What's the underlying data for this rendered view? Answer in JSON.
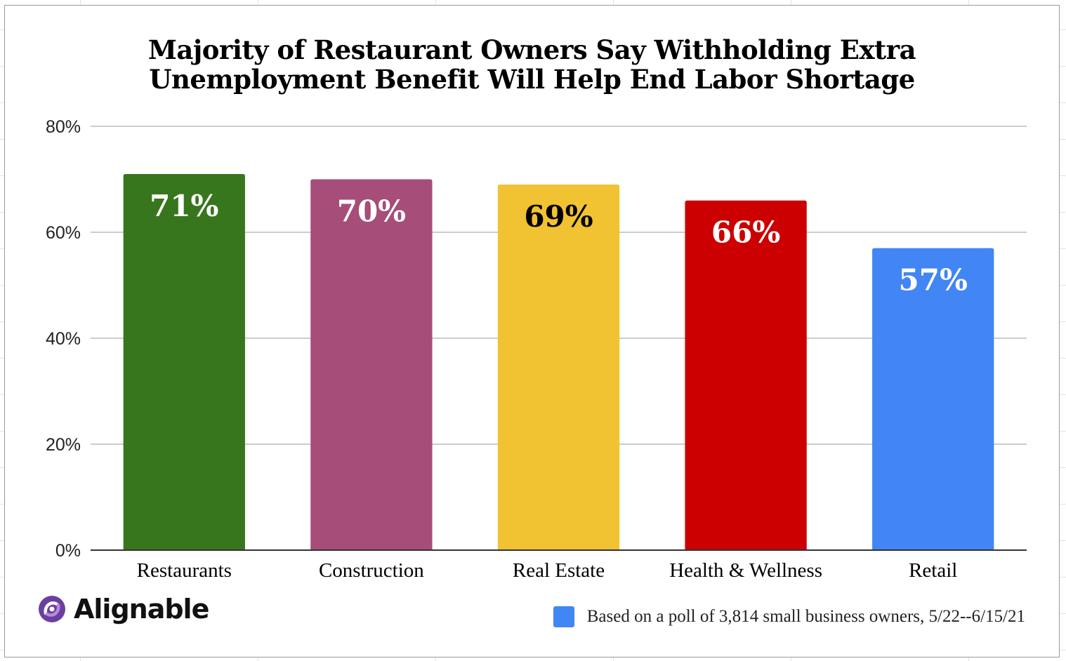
{
  "chart_data": {
    "type": "bar",
    "title_lines": [
      "Majority of Restaurant Owners Say Withholding Extra",
      "Unemployment Benefit Will Help End Labor Shortage"
    ],
    "categories": [
      "Restaurants",
      "Construction",
      "Real Estate",
      "Health & Wellness",
      "Retail"
    ],
    "values": [
      71,
      70,
      69,
      66,
      57
    ],
    "data_labels": [
      "71%",
      "70%",
      "69%",
      "66%",
      "57%"
    ],
    "bar_colors": [
      "#38761d",
      "#a64d79",
      "#f1c232",
      "#cc0000",
      "#4285f4"
    ],
    "label_colors": [
      "#ffffff",
      "#ffffff",
      "#000000",
      "#ffffff",
      "#ffffff"
    ],
    "yticks": [
      0,
      20,
      40,
      60,
      80
    ],
    "ytick_labels": [
      "0%",
      "20%",
      "40%",
      "60%",
      "80%"
    ],
    "ylim": [
      0,
      80
    ],
    "grid": true,
    "legend": {
      "text": "Based on a poll of 3,814 small business owners, 5/22--6/15/21",
      "color": "#4285f4",
      "placement": "bottom-right"
    }
  },
  "brand": {
    "name": "Alignable",
    "icon": "alignable-logo-icon"
  }
}
